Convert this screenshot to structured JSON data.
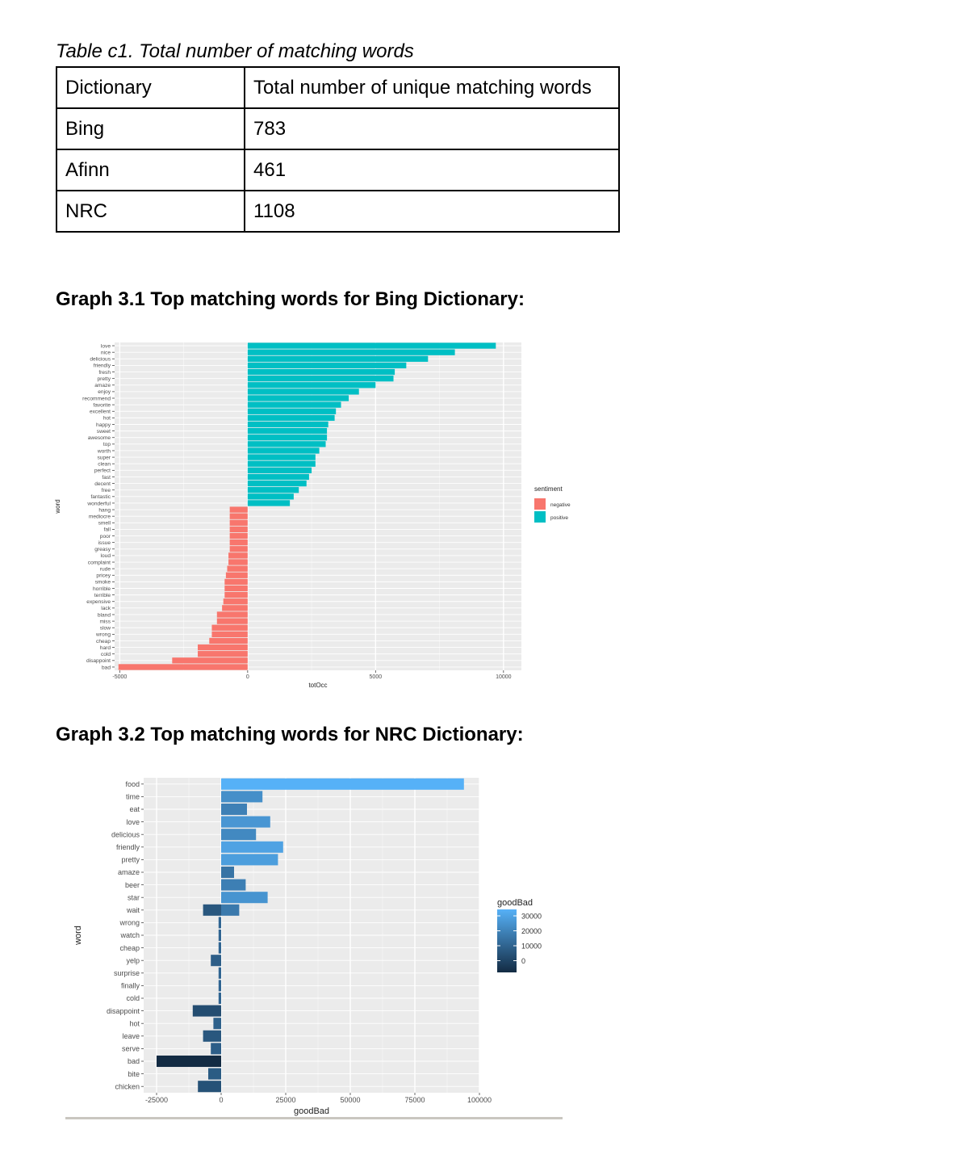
{
  "table": {
    "caption": "Table c1. Total number of matching words",
    "headers": [
      "Dictionary",
      "Total number of unique matching words"
    ],
    "rows": [
      [
        "Bing",
        "783"
      ],
      [
        "Afinn",
        "461"
      ],
      [
        "NRC",
        "1108"
      ]
    ]
  },
  "graph1": {
    "heading": "Graph 3.1 Top matching words for Bing Dictionary:"
  },
  "graph2": {
    "heading": "Graph 3.2 Top matching words for NRC Dictionary:"
  },
  "chart_data": [
    {
      "type": "bar",
      "orientation": "horizontal",
      "xlabel": "totOcc",
      "ylabel": "word",
      "xlim": [
        -5200,
        10700
      ],
      "xticks": [
        -5000,
        0,
        5000,
        10000
      ],
      "grid": true,
      "legend": {
        "title": "sentiment",
        "position": "right",
        "entries": [
          "negative",
          "positive"
        ],
        "colors": {
          "negative": "#f8766d",
          "positive": "#00bfc4"
        }
      },
      "categories": [
        "love",
        "nice",
        "delicious",
        "friendly",
        "fresh",
        "pretty",
        "amaze",
        "enjoy",
        "recommend",
        "favorite",
        "excellent",
        "hot",
        "happy",
        "sweet",
        "awesome",
        "top",
        "worth",
        "super",
        "clean",
        "perfect",
        "fast",
        "decent",
        "free",
        "fantastic",
        "wonderful",
        "hang",
        "mediocre",
        "smell",
        "fall",
        "poor",
        "issue",
        "greasy",
        "loud",
        "complaint",
        "rude",
        "pricey",
        "smoke",
        "horrible",
        "terrible",
        "expensive",
        "lack",
        "bland",
        "miss",
        "slow",
        "wrong",
        "cheap",
        "hard",
        "cold",
        "disappoint",
        "bad"
      ],
      "values": [
        9700,
        8100,
        7050,
        6200,
        5750,
        5700,
        5000,
        4350,
        3950,
        3650,
        3450,
        3400,
        3150,
        3100,
        3100,
        3050,
        2800,
        2650,
        2650,
        2500,
        2400,
        2300,
        2000,
        1800,
        1650,
        -700,
        -700,
        -700,
        -700,
        -700,
        -700,
        -700,
        -750,
        -750,
        -800,
        -850,
        -900,
        -900,
        -900,
        -950,
        -1000,
        -1200,
        -1200,
        -1400,
        -1400,
        -1500,
        -1950,
        -1950,
        -2950,
        -5050
      ],
      "sentiments": [
        "positive",
        "positive",
        "positive",
        "positive",
        "positive",
        "positive",
        "positive",
        "positive",
        "positive",
        "positive",
        "positive",
        "positive",
        "positive",
        "positive",
        "positive",
        "positive",
        "positive",
        "positive",
        "positive",
        "positive",
        "positive",
        "positive",
        "positive",
        "positive",
        "positive",
        "negative",
        "negative",
        "negative",
        "negative",
        "negative",
        "negative",
        "negative",
        "negative",
        "negative",
        "negative",
        "negative",
        "negative",
        "negative",
        "negative",
        "negative",
        "negative",
        "negative",
        "negative",
        "negative",
        "negative",
        "negative",
        "negative",
        "negative",
        "negative",
        "negative"
      ]
    },
    {
      "type": "bar",
      "orientation": "horizontal",
      "xlabel": "goodBad",
      "ylabel": "word",
      "xlim": [
        -30000,
        100000
      ],
      "xticks": [
        -25000,
        0,
        25000,
        50000,
        75000,
        100000
      ],
      "grid": true,
      "legend": {
        "title": "goodBad",
        "position": "right",
        "gradient": [
          "#132b43",
          "#56b1f7"
        ],
        "ticks": [
          30000,
          20000,
          10000,
          0
        ]
      },
      "categories": [
        "food",
        "time",
        "eat",
        "love",
        "delicious",
        "friendly",
        "pretty",
        "amaze",
        "beer",
        "star",
        "wait",
        "wrong",
        "watch",
        "cheap",
        "yelp",
        "surprise",
        "finally",
        "cold",
        "disappoint",
        "hot",
        "leave",
        "serve",
        "bad",
        "bite",
        "chicken"
      ],
      "values": [
        94000,
        16000,
        10000,
        19000,
        13500,
        24000,
        22000,
        5000,
        9500,
        18000,
        7000,
        -1000,
        -1000,
        -1000,
        -4000,
        -1000,
        -1000,
        -1000,
        -11000,
        -3000,
        -7000,
        -4000,
        -25000,
        -5000,
        -9000
      ],
      "neg_values": [
        0,
        0,
        0,
        0,
        0,
        0,
        0,
        0,
        0,
        0,
        -7000,
        0,
        0,
        0,
        0,
        0,
        0,
        0,
        0,
        0,
        0,
        0,
        0,
        0,
        0
      ]
    }
  ]
}
